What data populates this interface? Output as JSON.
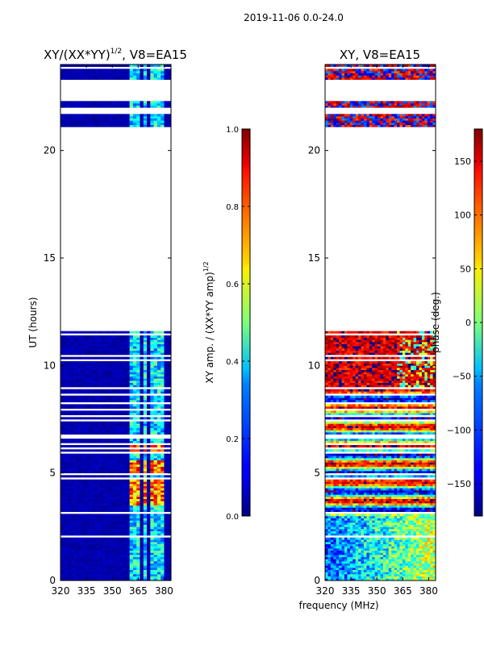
{
  "suptitle": "2019-11-06 0.0-24.0",
  "shared_xlabel": "frequency (MHz)",
  "colors": {
    "background_blue": "#00008f",
    "colormap": "jet"
  },
  "chart_data": [
    {
      "type": "heatmap",
      "id": "amp",
      "title": "XY/(XX*YY)",
      "title_sup": "1/2",
      "title_suffix": ", V8=EA15",
      "xlabel": "",
      "ylabel": "UT (hours)",
      "xlim": [
        320,
        384
      ],
      "ylim": [
        0,
        24
      ],
      "xticks": [
        320,
        335,
        350,
        365,
        380
      ],
      "yticks": [
        0,
        5,
        10,
        15,
        20
      ],
      "colorbar": {
        "label": "XY amp. / (XX*YY amp)",
        "label_sup": "1/2",
        "vmin": 0.0,
        "vmax": 1.0,
        "ticks": [
          0.0,
          0.2,
          0.4,
          0.6,
          0.8,
          1.0
        ],
        "tick_labels": [
          "0.0",
          "0.2",
          "0.4",
          "0.6",
          "0.8",
          "1.0"
        ]
      },
      "data_hour_ranges": [
        [
          0.0,
          11.6
        ],
        [
          21.1,
          22.3
        ],
        [
          23.3,
          24.0
        ]
      ],
      "active_freq_ranges_mhz": [
        [
          361,
          367
        ],
        [
          368,
          371
        ],
        [
          372,
          376
        ],
        [
          377,
          380
        ]
      ],
      "typical_values": {
        "quiet_band": 0.02,
        "active_band": 0.35,
        "peak_rfi_hours": [
          [
            3.5,
            4.7
          ],
          [
            5.0,
            5.6
          ],
          [
            6.0,
            6.4
          ]
        ],
        "peak_value": 0.95
      }
    },
    {
      "type": "heatmap",
      "id": "phase",
      "title": "XY, V8=EA15",
      "xlabel": "",
      "ylabel": "",
      "xlim": [
        320,
        384
      ],
      "ylim": [
        0,
        24
      ],
      "xticks": [
        320,
        335,
        350,
        365,
        380
      ],
      "yticks": [
        0,
        5,
        10,
        15,
        20
      ],
      "colorbar": {
        "label": "phase (deg.)",
        "vmin": -180,
        "vmax": 180,
        "ticks": [
          -150,
          -100,
          -50,
          0,
          50,
          100,
          150
        ],
        "tick_labels": [
          "−150",
          "−100",
          "−50",
          "0",
          "50",
          "100",
          "150"
        ]
      },
      "data_hour_ranges": [
        [
          0.0,
          11.6
        ],
        [
          21.1,
          22.3
        ],
        [
          23.3,
          24.0
        ]
      ],
      "typical_values": {
        "hours_9_to_11_6": 150,
        "hours_0_to_3": -40,
        "hours_3_to_9": "mixed"
      }
    }
  ]
}
